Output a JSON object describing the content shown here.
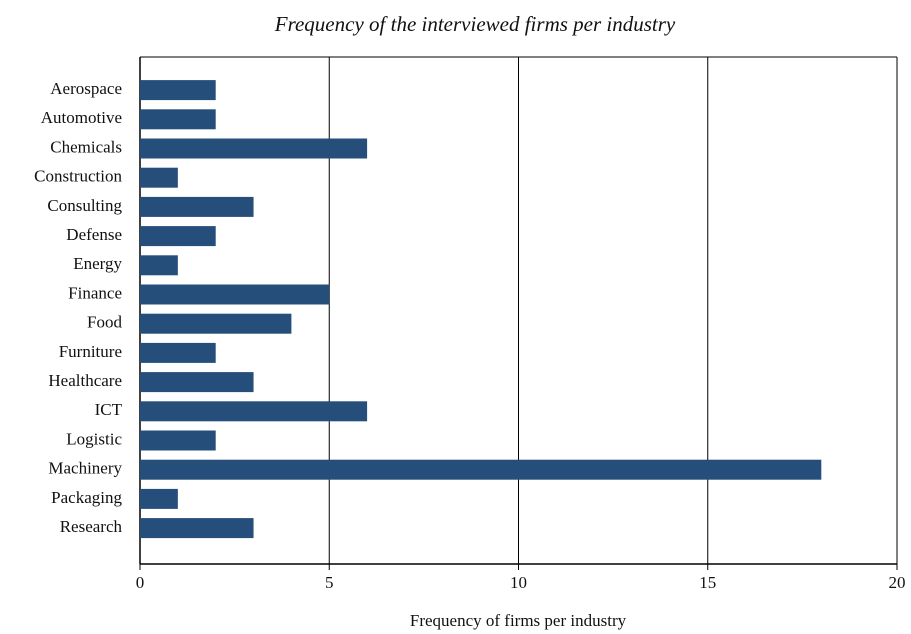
{
  "chart_data": {
    "type": "bar",
    "orientation": "horizontal",
    "title": "Frequency of the interviewed firms per industry",
    "x_label": "Frequency of firms per industry",
    "categories": [
      "Aerospace",
      "Automotive",
      "Chemicals",
      "Construction",
      "Consulting",
      "Defense",
      "Energy",
      "Finance",
      "Food",
      "Furniture",
      "Healthcare",
      "ICT",
      "Logistic",
      "Machinery",
      "Packaging",
      "Research"
    ],
    "values": [
      2,
      2,
      6,
      1,
      3,
      2,
      1,
      5,
      4,
      2,
      3,
      6,
      2,
      18,
      1,
      3
    ],
    "color": "#254e7b",
    "xlim": [
      0,
      20
    ],
    "xticks": [
      0,
      5,
      10,
      15,
      20
    ],
    "grid": true
  }
}
